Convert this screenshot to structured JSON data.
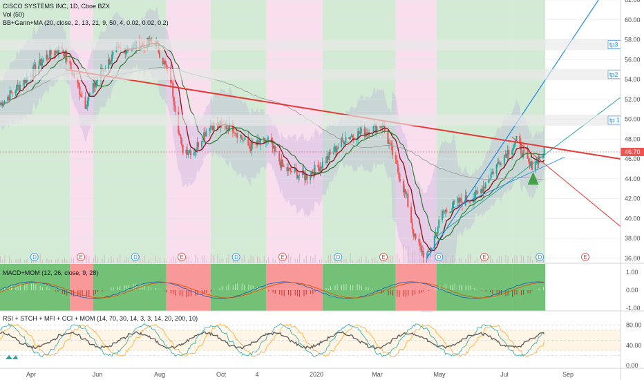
{
  "header": {
    "title": "CISCO SYSTEMS INC, 1D, Cboe BZX",
    "indicators": [
      "Vol (50)",
      "BB+Gann+MA (20, close, 2, 13, 21, 9, 50, 4, 0.02, 0.02, 0.2)"
    ]
  },
  "last_price": "46.70",
  "targets": [
    "tp3",
    "tp2",
    "tp 1"
  ],
  "event_markers": [
    {
      "kind": "D",
      "date": "2019-04-04"
    },
    {
      "kind": "E",
      "date": "2019-05-16"
    },
    {
      "kind": "D",
      "date": "2019-07-04"
    },
    {
      "kind": "E",
      "date": "2019-08-15"
    },
    {
      "kind": "D",
      "date": "2019-10-03"
    },
    {
      "kind": "E",
      "date": "2019-11-14"
    },
    {
      "kind": "D",
      "date": "2020-01-03"
    },
    {
      "kind": "E",
      "date": "2020-02-13"
    },
    {
      "kind": "D",
      "date": "2020-04-03"
    },
    {
      "kind": "E",
      "date": "2020-05-14"
    },
    {
      "kind": "D",
      "date": "2020-07-03"
    },
    {
      "kind": "E",
      "date": "2020-08-13"
    }
  ],
  "time_axis": [
    "Apr",
    "Jun",
    "Aug",
    "Oct",
    "4",
    "2020",
    "Mar",
    "May",
    "Jul",
    "Sep"
  ],
  "colors": {
    "bull_zone": "#c8e6c9",
    "bear_zone": "#f8d7ea",
    "candle_up": "#26a69a",
    "candle_down": "#ef5350",
    "trendline": "#e53935",
    "fan_line": "#1e88e5",
    "ma_fast": "#8b1a1a",
    "ma_mid": "#2e7d32",
    "ma_slow": "#9e9e9e"
  },
  "panels": {
    "macd": {
      "label": "MACD+MOM (12, 26, close, 9, 28)",
      "ticks": [
        "1.00",
        "0.00",
        "-1.00"
      ]
    },
    "rsi": {
      "label": "RSI + STCH + MFI + CCI + MOM (14, 70, 30, 14, 3, 3, 14, 20, 200, 10)",
      "ticks": [
        "80.00",
        "40.00",
        "0.00"
      ]
    }
  },
  "chart_data": {
    "type": "candlestick",
    "title": "CISCO SYSTEMS INC, 1D, Cboe BZX",
    "ylim": [
      35.5,
      62
    ],
    "price_ticks": [
      "62.00",
      "60.00",
      "58.00",
      "56.00",
      "54.00",
      "52.00",
      "50.00",
      "48.00",
      "46.00",
      "44.00",
      "42.00",
      "40.00",
      "38.00",
      "36.00"
    ],
    "date_range": [
      "2019-03-04",
      "2020-10-15"
    ],
    "close_path": [
      {
        "date": "2019-03-04",
        "close": 51.5
      },
      {
        "date": "2019-03-25",
        "close": 53.8
      },
      {
        "date": "2019-04-15",
        "close": 56.3
      },
      {
        "date": "2019-04-29",
        "close": 57.2
      },
      {
        "date": "2019-05-10",
        "close": 54.2
      },
      {
        "date": "2019-05-20",
        "close": 51.5
      },
      {
        "date": "2019-06-03",
        "close": 54.8
      },
      {
        "date": "2019-06-17",
        "close": 56.8
      },
      {
        "date": "2019-07-01",
        "close": 57.3
      },
      {
        "date": "2019-07-22",
        "close": 57.8
      },
      {
        "date": "2019-08-05",
        "close": 54.0
      },
      {
        "date": "2019-08-15",
        "close": 47.0
      },
      {
        "date": "2019-08-26",
        "close": 46.8
      },
      {
        "date": "2019-09-09",
        "close": 49.5
      },
      {
        "date": "2019-09-30",
        "close": 49.2
      },
      {
        "date": "2019-10-15",
        "close": 47.2
      },
      {
        "date": "2019-11-01",
        "close": 47.8
      },
      {
        "date": "2019-11-15",
        "close": 45.0
      },
      {
        "date": "2019-12-05",
        "close": 44.2
      },
      {
        "date": "2019-12-20",
        "close": 45.5
      },
      {
        "date": "2020-01-10",
        "close": 48.2
      },
      {
        "date": "2020-01-30",
        "close": 48.8
      },
      {
        "date": "2020-02-12",
        "close": 49.5
      },
      {
        "date": "2020-02-21",
        "close": 46.5
      },
      {
        "date": "2020-03-05",
        "close": 42.0
      },
      {
        "date": "2020-03-12",
        "close": 38.0
      },
      {
        "date": "2020-03-23",
        "close": 35.9
      },
      {
        "date": "2020-04-06",
        "close": 40.5
      },
      {
        "date": "2020-04-20",
        "close": 41.6
      },
      {
        "date": "2020-05-08",
        "close": 42.4
      },
      {
        "date": "2020-05-29",
        "close": 46.0
      },
      {
        "date": "2020-06-12",
        "close": 47.8
      },
      {
        "date": "2020-06-24",
        "close": 45.2
      },
      {
        "date": "2020-07-07",
        "close": 46.7
      }
    ],
    "zones": [
      {
        "from": "2019-03-04",
        "to": "2019-05-06",
        "state": "bull"
      },
      {
        "from": "2019-05-06",
        "to": "2019-05-27",
        "state": "bear"
      },
      {
        "from": "2019-05-27",
        "to": "2019-08-01",
        "state": "bull"
      },
      {
        "from": "2019-08-01",
        "to": "2019-09-10",
        "state": "bear"
      },
      {
        "from": "2019-09-10",
        "to": "2019-10-30",
        "state": "bull"
      },
      {
        "from": "2019-10-30",
        "to": "2019-12-20",
        "state": "bear"
      },
      {
        "from": "2019-12-20",
        "to": "2020-02-24",
        "state": "bull"
      },
      {
        "from": "2020-02-24",
        "to": "2020-04-01",
        "state": "bear"
      },
      {
        "from": "2020-04-01",
        "to": "2020-06-08",
        "state": "bull"
      },
      {
        "from": "2020-06-08",
        "to": "2020-07-08",
        "state": "bull"
      }
    ]
  }
}
